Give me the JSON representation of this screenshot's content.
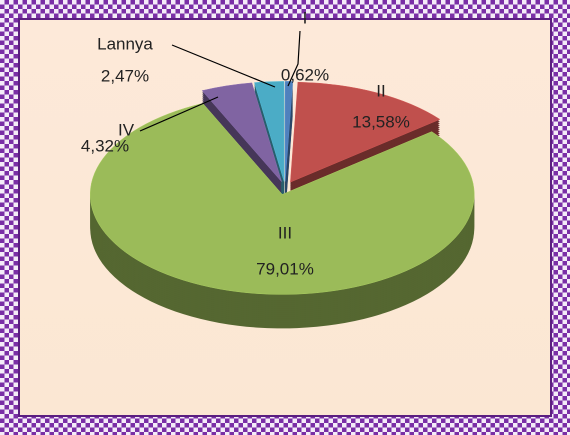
{
  "chart_data": {
    "type": "pie",
    "categories": [
      "I",
      "II",
      "III",
      "IV",
      "Lannya"
    ],
    "values": [
      0.62,
      13.58,
      79.01,
      4.32,
      2.47
    ],
    "value_labels": [
      "0,62%",
      "13,58%",
      "79,01%",
      "4,32%",
      "2,47%"
    ],
    "colors": [
      "#4f81bd",
      "#c0504d",
      "#9bbb59",
      "#8064a2",
      "#4bacc6"
    ]
  }
}
